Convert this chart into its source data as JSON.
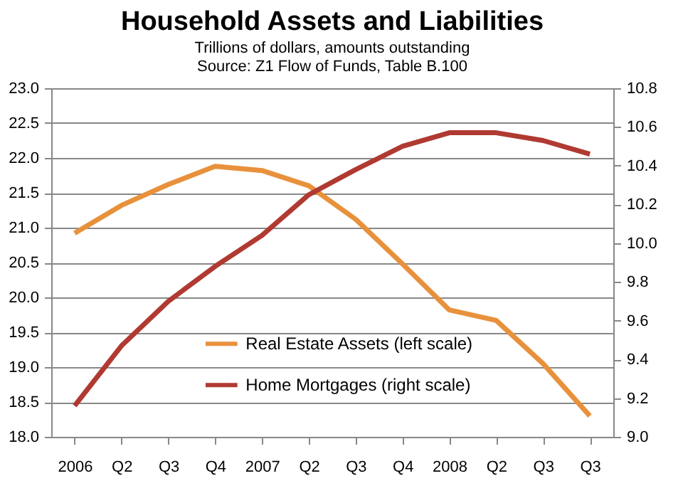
{
  "chart_data": {
    "type": "line",
    "title": "Household Assets and Liabilities",
    "subtitle": [
      "Trillions of dollars, amounts outstanding",
      "Source: Z1 Flow of Funds, Table B.100"
    ],
    "categories": [
      "2006",
      "Q2",
      "Q3",
      "Q4",
      "2007",
      "Q2",
      "Q3",
      "Q4",
      "2008",
      "Q2",
      "Q3",
      "Q3"
    ],
    "series": [
      {
        "name": "Real Estate Assets (left scale)",
        "color": "#e8913c",
        "values": [
          20.92,
          21.32,
          21.62,
          21.88,
          21.82,
          21.6,
          21.12,
          20.48,
          19.82,
          19.67,
          19.05,
          18.3
        ]
      },
      {
        "name": "Home Mortgages (right scale)",
        "color": "#b03a32",
        "axis": "y2",
        "values": [
          9.16,
          9.47,
          9.7,
          9.88,
          10.04,
          10.25,
          10.38,
          10.5,
          10.57,
          10.57,
          10.53,
          10.46
        ]
      }
    ],
    "ylim": [
      18.0,
      23.0
    ],
    "yticks": [
      {
        "value": 18,
        "label": "18.0"
      },
      {
        "value": 18.5,
        "label": "18.5"
      },
      {
        "value": 19,
        "label": "19.0"
      },
      {
        "value": 19.5,
        "label": "19.5"
      },
      {
        "value": 20,
        "label": "20.0"
      },
      {
        "value": 20.5,
        "label": "20.5"
      },
      {
        "value": 21,
        "label": "21.0"
      },
      {
        "value": 21.5,
        "label": "21.5"
      },
      {
        "value": 22,
        "label": "22.0"
      },
      {
        "value": 22.5,
        "label": "22.5"
      },
      {
        "value": 23,
        "label": "23.0"
      }
    ],
    "y2lim": [
      9.0,
      10.8
    ],
    "y2ticks": [
      {
        "value": 9,
        "label": "9.0"
      },
      {
        "value": 9.2,
        "label": "9.2"
      },
      {
        "value": 9.4,
        "label": "9.4"
      },
      {
        "value": 9.6,
        "label": "9.6"
      },
      {
        "value": 9.8,
        "label": "9.8"
      },
      {
        "value": 10,
        "label": "10.0"
      },
      {
        "value": 10.2,
        "label": "10.2"
      },
      {
        "value": 10.4,
        "label": "10.4"
      },
      {
        "value": 10.6,
        "label": "10.6"
      },
      {
        "value": 10.8,
        "label": "10.8"
      }
    ],
    "grid": "y",
    "legend": "bottom",
    "marker": "none",
    "line_style": "solid"
  }
}
